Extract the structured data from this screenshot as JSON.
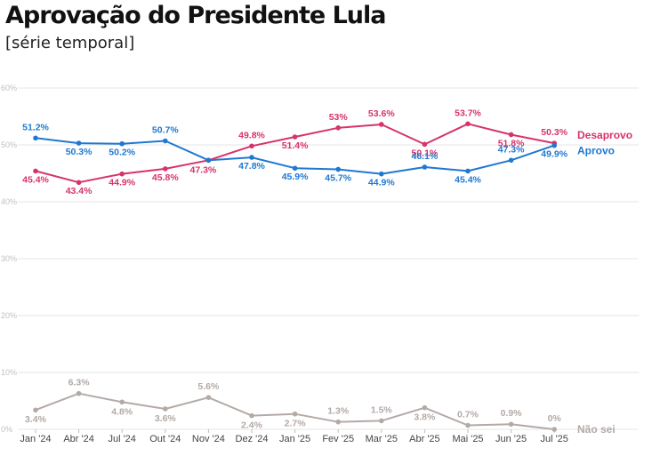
{
  "header": {
    "title": "Aprovação do Presidente Lula",
    "subtitle": "[série temporal]"
  },
  "chart_data": {
    "type": "line",
    "title": "Aprovação do Presidente Lula",
    "subtitle": "[série temporal]",
    "xlabel": "",
    "ylabel": "",
    "ylim": [
      0,
      60
    ],
    "yticks": [
      "0%",
      "10%",
      "20%",
      "30%",
      "40%",
      "50%",
      "60%"
    ],
    "grid": true,
    "legend": "series labels at right end of lines",
    "categories": [
      "Jan '24",
      "Abr '24",
      "Jul '24",
      "Out '24",
      "Nov '24",
      "Dez '24",
      "Jan '25",
      "Fev '25",
      "Mar '25",
      "Abr '25",
      "Mai '25",
      "Jun '25",
      "Jul '25"
    ],
    "series": [
      {
        "name": "Desaprovo",
        "color": "#d6336c",
        "values": [
          45.4,
          43.4,
          44.9,
          45.8,
          47.3,
          49.8,
          51.4,
          53,
          53.6,
          50.1,
          53.7,
          51.8,
          50.3
        ],
        "labels": [
          "45.4%",
          "43.4%",
          "44.9%",
          "45.8%",
          "47.3%",
          "49.8%",
          "51.4%",
          "53%",
          "53.6%",
          "50.1%",
          "53.7%",
          "51.8%",
          "50.3%"
        ]
      },
      {
        "name": "Aprovo",
        "color": "#1f78d1",
        "values": [
          51.2,
          50.3,
          50.2,
          50.7,
          47.3,
          47.8,
          45.9,
          45.7,
          44.9,
          46.1,
          45.4,
          47.3,
          49.9
        ],
        "labels": [
          "51.2%",
          "50.3%",
          "50.2%",
          "50.7%",
          "",
          "47.8%",
          "45.9%",
          "45.7%",
          "44.9%",
          "46.1%",
          "45.4%",
          "47.3%",
          "49.9%"
        ]
      },
      {
        "name": "Não sei",
        "color": "#b3aaa6",
        "values": [
          3.4,
          6.3,
          4.8,
          3.6,
          5.6,
          2.4,
          2.7,
          1.3,
          1.5,
          3.8,
          0.7,
          0.9,
          0
        ],
        "labels": [
          "3.4%",
          "6.3%",
          "4.8%",
          "3.6%",
          "5.6%",
          "2.4%",
          "2.7%",
          "1.3%",
          "1.5%",
          "3.8%",
          "0.7%",
          "0.9%",
          "0%"
        ]
      }
    ]
  }
}
